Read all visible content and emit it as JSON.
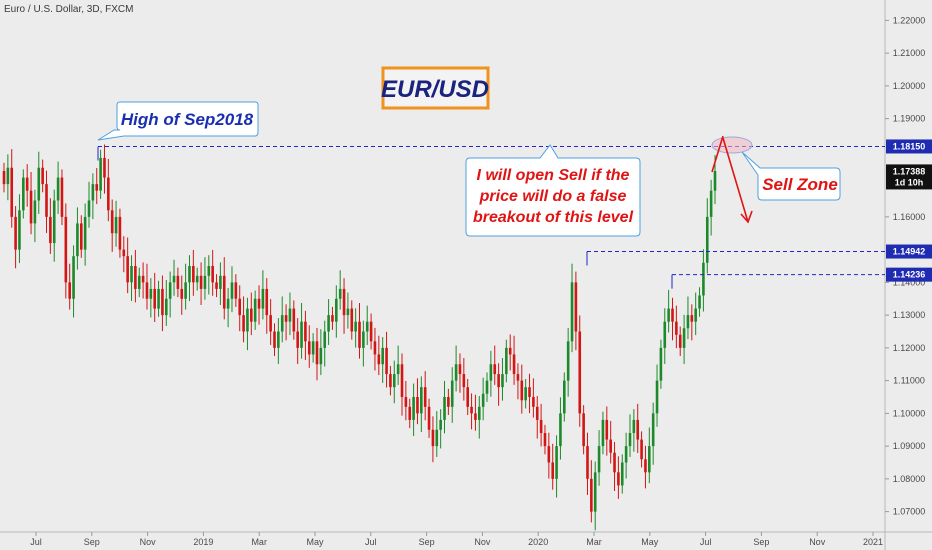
{
  "chart_title": "Euro / U.S. Dollar, 3D, FXCM",
  "pair_label": "EUR/USD",
  "colors": {
    "background": "#ececec",
    "up_candle": "#1c8a2a",
    "down_candle": "#d31515",
    "level_line": "#2424c8",
    "callout_blue": "#1a2fb0",
    "callout_red": "#e01414",
    "pair_box_border": "#f0921e",
    "price_label_bg": "#1f2bb0",
    "current_label_bg": "#111111"
  },
  "chart_data": {
    "type": "candlestick",
    "x_tick_labels": [
      "Jul",
      "Sep",
      "Nov",
      "2019",
      "Mar",
      "May",
      "Jul",
      "Sep",
      "Nov",
      "2020",
      "Mar",
      "May",
      "Jul",
      "Sep",
      "Nov",
      "2021"
    ],
    "y_ticks": [
      1.07,
      1.08,
      1.09,
      1.1,
      1.11,
      1.12,
      1.13,
      1.14,
      1.16,
      1.19,
      1.2,
      1.21,
      1.22
    ],
    "ylim": [
      1.065,
      1.225
    ],
    "price_levels": [
      {
        "name": "sep2018-high",
        "value": 1.1815,
        "label": "1.18150"
      },
      {
        "name": "mar2020-high",
        "value": 1.14942,
        "label": "1.14942"
      },
      {
        "name": "jun2020-high",
        "value": 1.14236,
        "label": "1.14236"
      }
    ],
    "current_price": {
      "value": 1.17388,
      "label": "1.17388",
      "countdown": "1d 10h"
    },
    "annotations": [
      {
        "name": "high-sep2018-callout",
        "lines": [
          "High of Sep2018"
        ]
      },
      {
        "name": "sell-condition-callout",
        "lines": [
          "I will open Sell if the",
          "price will do a false",
          "breakout of this level"
        ]
      },
      {
        "name": "sell-zone-callout",
        "lines": [
          "Sell Zone"
        ]
      }
    ],
    "closes": [
      1.17,
      1.175,
      1.16,
      1.15,
      1.162,
      1.172,
      1.168,
      1.158,
      1.165,
      1.175,
      1.17,
      1.16,
      1.152,
      1.165,
      1.172,
      1.16,
      1.14,
      1.135,
      1.148,
      1.158,
      1.15,
      1.16,
      1.165,
      1.17,
      1.168,
      1.178,
      1.172,
      1.162,
      1.155,
      1.16,
      1.15,
      1.148,
      1.14,
      1.145,
      1.138,
      1.142,
      1.14,
      1.135,
      1.138,
      1.132,
      1.138,
      1.13,
      1.135,
      1.14,
      1.142,
      1.138,
      1.135,
      1.14,
      1.145,
      1.14,
      1.142,
      1.138,
      1.142,
      1.145,
      1.14,
      1.138,
      1.142,
      1.132,
      1.135,
      1.14,
      1.135,
      1.13,
      1.125,
      1.132,
      1.128,
      1.135,
      1.132,
      1.138,
      1.13,
      1.125,
      1.12,
      1.125,
      1.13,
      1.128,
      1.132,
      1.125,
      1.12,
      1.128,
      1.122,
      1.118,
      1.122,
      1.115,
      1.12,
      1.125,
      1.13,
      1.128,
      1.135,
      1.138,
      1.13,
      1.132,
      1.125,
      1.128,
      1.12,
      1.125,
      1.128,
      1.122,
      1.118,
      1.115,
      1.12,
      1.112,
      1.108,
      1.112,
      1.115,
      1.105,
      1.102,
      1.098,
      1.105,
      1.1,
      1.108,
      1.102,
      1.095,
      1.09,
      1.095,
      1.098,
      1.105,
      1.102,
      1.11,
      1.115,
      1.112,
      1.108,
      1.102,
      1.1,
      1.098,
      1.102,
      1.106,
      1.11,
      1.115,
      1.112,
      1.108,
      1.112,
      1.12,
      1.118,
      1.112,
      1.11,
      1.104,
      1.108,
      1.105,
      1.102,
      1.098,
      1.094,
      1.09,
      1.085,
      1.08,
      1.09,
      1.1,
      1.11,
      1.122,
      1.14,
      1.125,
      1.1,
      1.09,
      1.08,
      1.07,
      1.082,
      1.09,
      1.098,
      1.092,
      1.088,
      1.082,
      1.078,
      1.085,
      1.09,
      1.094,
      1.098,
      1.092,
      1.086,
      1.082,
      1.09,
      1.1,
      1.11,
      1.12,
      1.128,
      1.132,
      1.128,
      1.124,
      1.12,
      1.126,
      1.13,
      1.128,
      1.132,
      1.136,
      1.146,
      1.16,
      1.168,
      1.174
    ]
  }
}
